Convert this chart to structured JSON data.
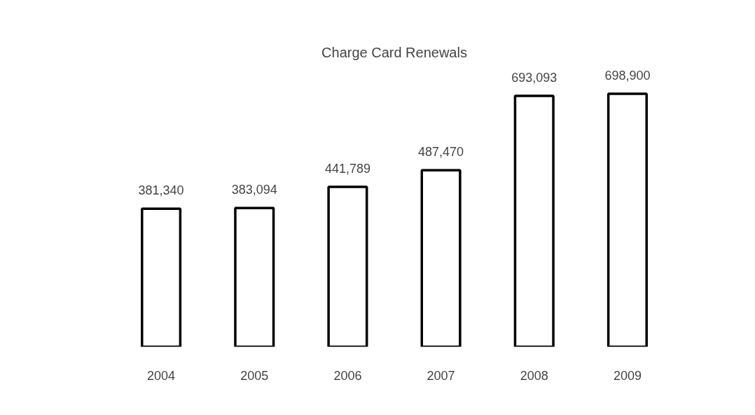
{
  "chart_data": {
    "type": "bar",
    "title": "Charge Card Renewals",
    "categories": [
      "2004",
      "2005",
      "2006",
      "2007",
      "2008",
      "2009"
    ],
    "values": [
      381340,
      383094,
      441789,
      487470,
      693093,
      698900
    ],
    "value_labels": [
      "381,340",
      "383,094",
      "441,789",
      "487,470",
      "693,093",
      "698,900"
    ],
    "color": "#000000",
    "tick_labels": "x",
    "grid": false
  }
}
